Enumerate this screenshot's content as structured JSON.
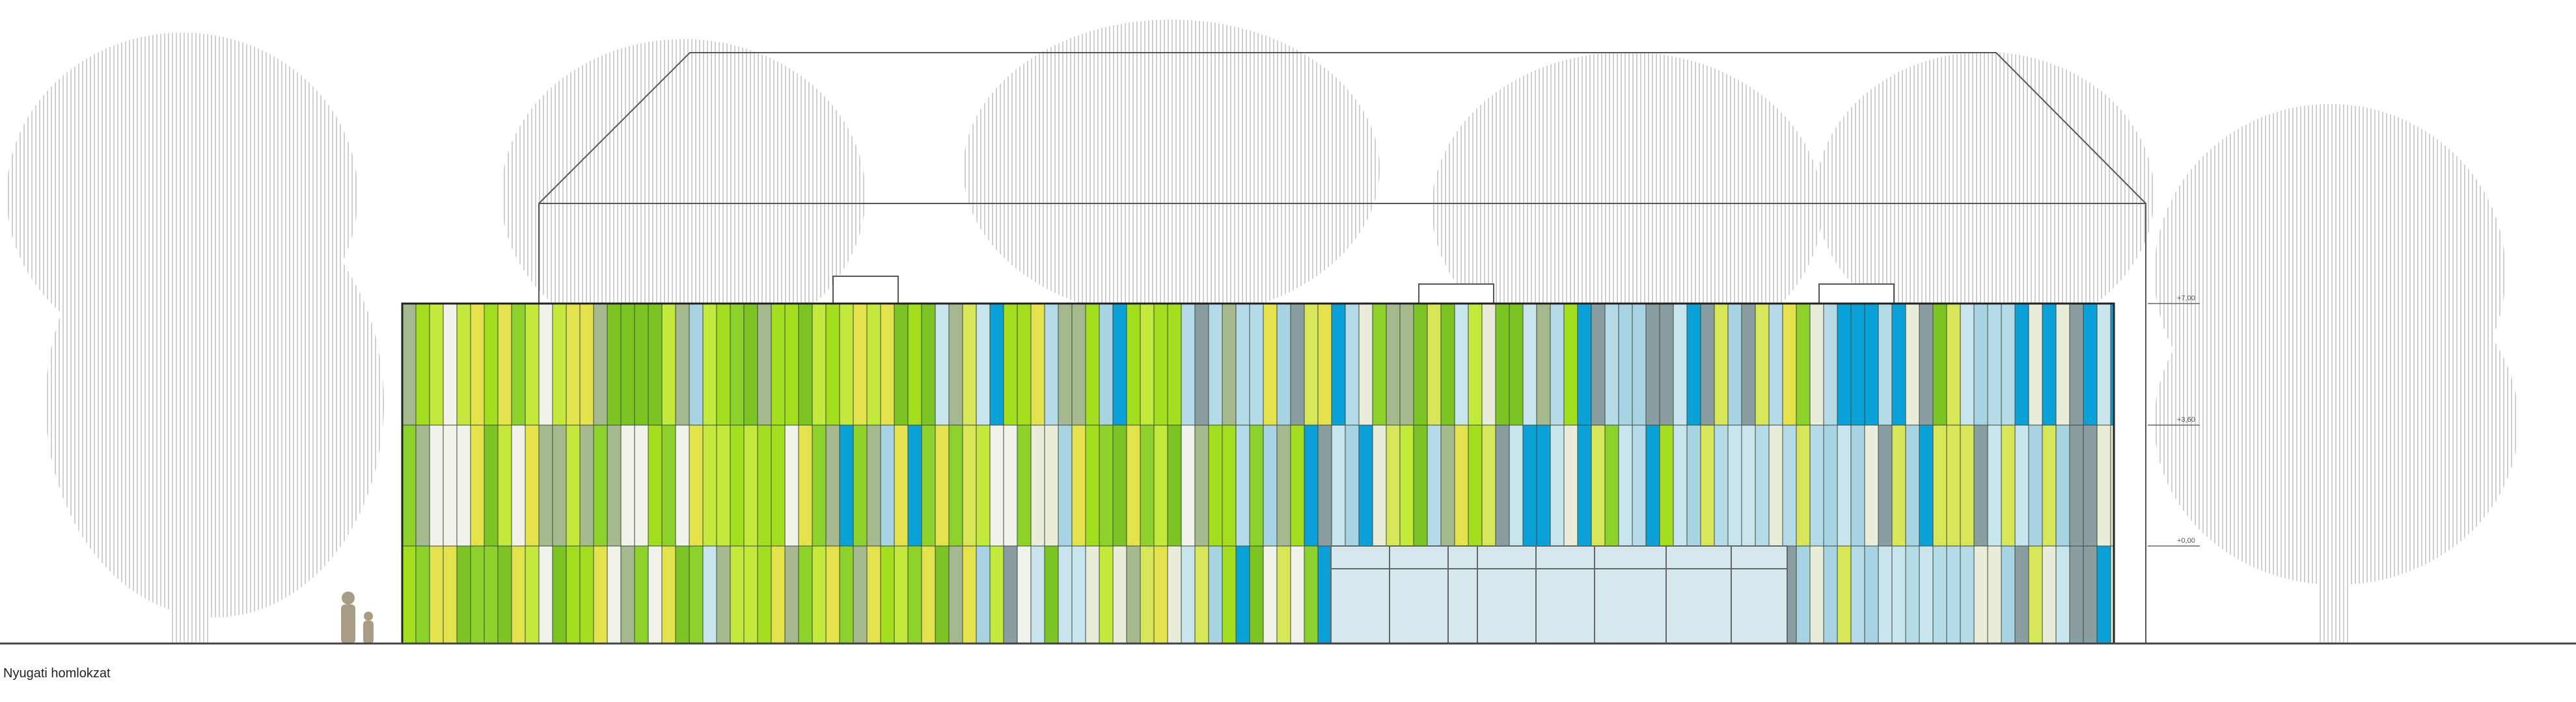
{
  "title": "Nyugati homlokzat",
  "levels": [
    "+7,00",
    "+3,60",
    "+0,00"
  ]
}
